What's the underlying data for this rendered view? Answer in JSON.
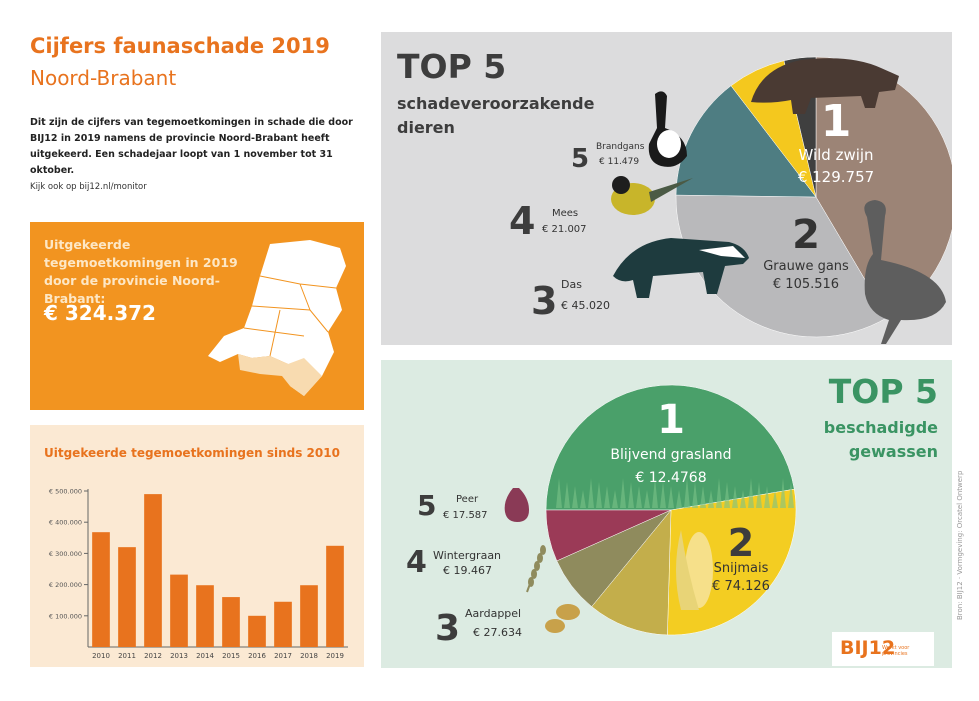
{
  "header": {
    "title": "Cijfers faunaschade 2019",
    "subtitle": "Noord-Brabant",
    "intro": "Dit zijn de cijfers van tegemoetkomingen in schade die door BIJ12 in 2019 namens de provincie Noord-Brabant heeft uitgekeerd. Een schadejaar loopt van 1 november tot 31 oktober.",
    "see_also": "Kijk ook op bij12.nl/monitor"
  },
  "payout_box": {
    "label": "Uitgekeerde tegemoetkomingen in 2019 door de provincie Noord-Brabant:",
    "total": "€ 324.372",
    "colors": {
      "background": "#f29420",
      "map": "#ffffff",
      "highlight": "#f8dbb0"
    }
  },
  "top5_animals": {
    "heading": "TOP 5",
    "subheading": "schadeveroorzakende dieren",
    "items": [
      {
        "rank": "1",
        "name": "Wild zwijn",
        "amount": "€ 129.757"
      },
      {
        "rank": "2",
        "name": "Grauwe gans",
        "amount": "€ 105.516"
      },
      {
        "rank": "3",
        "name": "Das",
        "amount": "€ 45.020"
      },
      {
        "rank": "4",
        "name": "Mees",
        "amount": "€ 21.007"
      },
      {
        "rank": "5",
        "name": "Brandgans",
        "amount": "€ 11.479"
      }
    ],
    "icons": [
      "wild-boar-icon",
      "goose-icon",
      "badger-icon",
      "tit-bird-icon",
      "barnacle-goose-icon"
    ]
  },
  "top5_crops": {
    "heading": "TOP 5",
    "subheading": "beschadigde gewassen",
    "items": [
      {
        "rank": "1",
        "name": "Blijvend grasland",
        "amount": "€ 12.4768"
      },
      {
        "rank": "2",
        "name": "Snijmais",
        "amount": "€ 74.126"
      },
      {
        "rank": "3",
        "name": "Aardappel",
        "amount": "€ 27.634"
      },
      {
        "rank": "4",
        "name": "Wintergraan",
        "amount": "€ 19.467"
      },
      {
        "rank": "5",
        "name": "Peer",
        "amount": "€ 17.587"
      }
    ],
    "icons": [
      "corn-icon",
      "potato-icon",
      "wheat-icon",
      "pear-icon"
    ]
  },
  "footer": {
    "credit": "Bron: BIJ12 · Vormgeving: Orcatel Ontwerp",
    "logo": "BIJ12",
    "logo_sub": "Werkt voor provincies"
  },
  "chart_data": [
    {
      "type": "bar",
      "title": "Uitgekeerde tegemoetkomingen sinds 2010",
      "categories": [
        "2010",
        "2011",
        "2012",
        "2013",
        "2014",
        "2015",
        "2016",
        "2017",
        "2018",
        "2019"
      ],
      "values": [
        368000,
        320000,
        490000,
        232000,
        198000,
        160000,
        100000,
        145000,
        198000,
        324372
      ],
      "ylim": [
        0,
        500000
      ],
      "yticks": [
        100000,
        200000,
        300000,
        400000,
        500000
      ],
      "ytick_labels": [
        "€ 100.000",
        "€ 200.000",
        "€ 300.000",
        "€ 400.000",
        "€ 500.000"
      ],
      "color": "#e8731e",
      "grid": false
    },
    {
      "type": "pie",
      "title": "TOP 5 schadeveroorzakende dieren",
      "categories": [
        "Wild zwijn",
        "Grauwe gans",
        "Das",
        "Mees",
        "Brandgans"
      ],
      "values": [
        129757,
        105516,
        45020,
        21007,
        11479
      ],
      "colors": [
        "#9c8476",
        "#b9b9bb",
        "#4e7d82",
        "#f4c81e",
        "#3f3f3f"
      ]
    },
    {
      "type": "pie",
      "title": "TOP 5 beschadigde gewassen",
      "categories": [
        "Blijvend grasland",
        "Snijmais",
        "Aardappel",
        "Wintergraan",
        "Peer"
      ],
      "values": [
        124768,
        74126,
        27634,
        19467,
        17587
      ],
      "colors": [
        "#4aa06a",
        "#f3cd22",
        "#c3ae4b",
        "#8f8b5d",
        "#9b3a57"
      ]
    }
  ]
}
